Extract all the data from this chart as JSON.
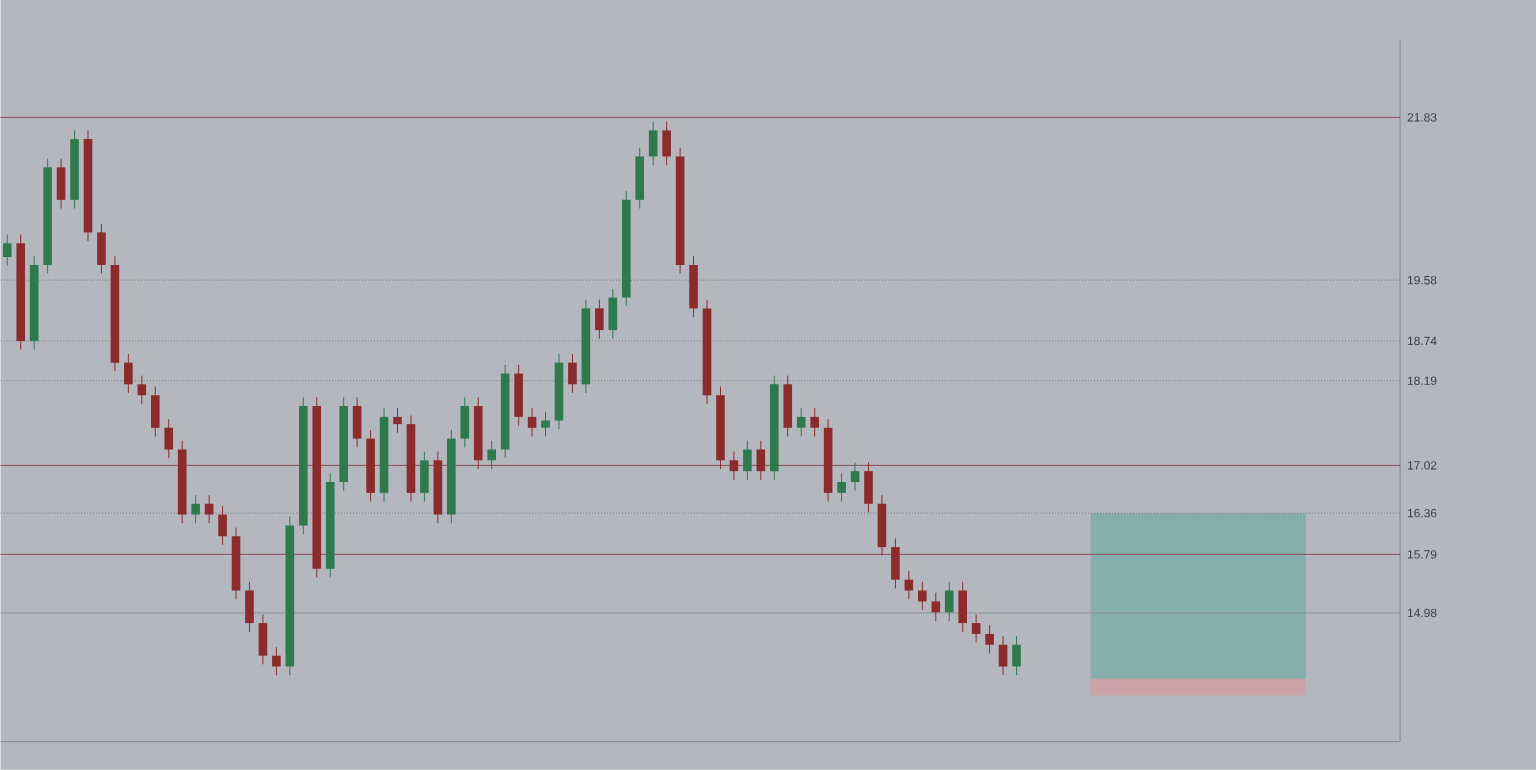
{
  "chart_data": {
    "type": "candlestick",
    "categories": [
      null,
      null,
      null,
      null,
      null,
      null,
      null,
      null,
      null,
      null,
      null,
      null,
      null,
      null,
      null,
      null,
      null,
      null,
      null,
      null,
      null,
      null,
      null,
      null,
      null,
      null,
      null,
      null,
      null,
      null,
      null,
      null,
      null,
      null,
      null,
      null,
      null,
      null,
      null,
      null,
      null,
      null,
      null,
      null,
      null,
      null,
      null,
      null,
      null,
      null,
      null,
      null,
      null,
      null,
      null,
      null,
      null,
      null,
      null,
      null,
      null,
      null,
      null,
      null,
      null,
      null,
      null,
      null,
      null,
      null,
      null,
      null,
      null,
      null,
      null,
      null,
      null,
      null,
      null,
      null,
      null,
      null,
      null,
      null,
      null,
      null,
      null,
      null,
      null,
      null,
      null,
      null,
      null,
      null,
      null,
      null,
      null,
      null,
      null,
      null,
      null,
      null,
      null,
      null
    ],
    "ohlc": [
      [
        19.9,
        20.21,
        19.78,
        20.09
      ],
      [
        20.09,
        20.21,
        18.62,
        18.74
      ],
      [
        18.74,
        19.91,
        18.62,
        19.79
      ],
      [
        19.79,
        21.26,
        19.67,
        21.14
      ],
      [
        21.14,
        21.26,
        20.57,
        20.69
      ],
      [
        20.69,
        21.65,
        20.57,
        21.53
      ],
      [
        21.53,
        21.65,
        20.12,
        20.24
      ],
      [
        20.24,
        20.36,
        19.67,
        19.79
      ],
      [
        19.79,
        19.91,
        18.32,
        18.44
      ],
      [
        18.44,
        18.56,
        18.02,
        18.14
      ],
      [
        18.14,
        18.26,
        17.87,
        17.99
      ],
      [
        17.99,
        18.11,
        17.42,
        17.54
      ],
      [
        17.54,
        17.66,
        17.12,
        17.24
      ],
      [
        17.24,
        17.36,
        16.22,
        16.34
      ],
      [
        16.34,
        16.61,
        16.22,
        16.49
      ],
      [
        16.49,
        16.61,
        16.22,
        16.34
      ],
      [
        16.34,
        16.46,
        15.92,
        16.04
      ],
      [
        16.04,
        16.16,
        15.17,
        15.29
      ],
      [
        15.29,
        15.41,
        14.72,
        14.84
      ],
      [
        14.84,
        14.96,
        14.27,
        14.39
      ],
      [
        14.39,
        14.51,
        14.12,
        14.24
      ],
      [
        14.24,
        16.31,
        14.12,
        16.19
      ],
      [
        16.19,
        17.96,
        16.07,
        17.84
      ],
      [
        17.84,
        17.96,
        15.47,
        15.59
      ],
      [
        15.59,
        16.91,
        15.47,
        16.79
      ],
      [
        16.79,
        17.96,
        16.67,
        17.84
      ],
      [
        17.84,
        17.96,
        17.27,
        17.39
      ],
      [
        17.39,
        17.51,
        16.52,
        16.64
      ],
      [
        16.64,
        17.81,
        16.52,
        17.69
      ],
      [
        17.69,
        17.81,
        17.47,
        17.59
      ],
      [
        17.59,
        17.71,
        16.52,
        16.64
      ],
      [
        16.64,
        17.21,
        16.52,
        17.09
      ],
      [
        17.09,
        17.21,
        16.22,
        16.34
      ],
      [
        16.34,
        17.51,
        16.22,
        17.39
      ],
      [
        17.39,
        17.96,
        17.27,
        17.84
      ],
      [
        17.84,
        17.96,
        16.97,
        17.09
      ],
      [
        17.09,
        17.36,
        16.97,
        17.24
      ],
      [
        17.24,
        18.41,
        17.12,
        18.29
      ],
      [
        18.29,
        18.41,
        17.57,
        17.69
      ],
      [
        17.69,
        17.81,
        17.42,
        17.54
      ],
      [
        17.54,
        17.76,
        17.42,
        17.64
      ],
      [
        17.64,
        18.56,
        17.52,
        18.44
      ],
      [
        18.44,
        18.56,
        18.02,
        18.14
      ],
      [
        18.14,
        19.31,
        18.02,
        19.19
      ],
      [
        19.19,
        19.31,
        18.77,
        18.89
      ],
      [
        18.89,
        19.46,
        18.77,
        19.34
      ],
      [
        19.34,
        20.81,
        19.22,
        20.69
      ],
      [
        20.69,
        21.41,
        20.57,
        21.29
      ],
      [
        21.29,
        21.77,
        21.17,
        21.65
      ],
      [
        21.65,
        21.77,
        21.17,
        21.29
      ],
      [
        21.29,
        21.41,
        19.67,
        19.79
      ],
      [
        19.79,
        19.91,
        19.07,
        19.19
      ],
      [
        19.19,
        19.31,
        17.87,
        17.99
      ],
      [
        17.99,
        18.11,
        16.97,
        17.09
      ],
      [
        17.09,
        17.21,
        16.82,
        16.94
      ],
      [
        16.94,
        17.36,
        16.82,
        17.24
      ],
      [
        17.24,
        17.36,
        16.82,
        16.94
      ],
      [
        16.94,
        18.26,
        16.82,
        18.14
      ],
      [
        18.14,
        18.26,
        17.42,
        17.54
      ],
      [
        17.54,
        17.81,
        17.42,
        17.69
      ],
      [
        17.69,
        17.81,
        17.42,
        17.54
      ],
      [
        17.54,
        17.66,
        16.52,
        16.64
      ],
      [
        16.64,
        16.91,
        16.52,
        16.79
      ],
      [
        16.79,
        17.06,
        16.67,
        16.94
      ],
      [
        16.94,
        17.06,
        16.37,
        16.49
      ],
      [
        16.49,
        16.61,
        15.77,
        15.89
      ],
      [
        15.89,
        16.01,
        15.32,
        15.44
      ],
      [
        15.44,
        15.56,
        15.17,
        15.29
      ],
      [
        15.29,
        15.41,
        15.02,
        15.14
      ],
      [
        15.14,
        15.26,
        14.87,
        14.99
      ],
      [
        14.99,
        15.41,
        14.87,
        15.29
      ],
      [
        15.29,
        15.41,
        14.72,
        14.84
      ],
      [
        14.84,
        14.96,
        14.57,
        14.69
      ],
      [
        14.69,
        14.81,
        14.42,
        14.54
      ],
      [
        14.54,
        14.66,
        14.12,
        14.24
      ],
      [
        14.24,
        14.66,
        14.12,
        14.54
      ],
      null,
      null,
      null,
      null,
      null,
      null,
      null,
      null,
      null,
      null,
      null,
      null,
      null,
      null,
      null,
      null,
      null,
      null,
      null,
      null,
      null,
      null,
      null,
      null,
      null,
      null,
      null,
      null
    ],
    "ylim": [
      13.2,
      22.9
    ],
    "yticks": [
      21.83,
      19.58,
      18.74,
      18.19,
      17.02,
      16.36,
      15.79,
      14.98
    ],
    "ref_lines": [
      {
        "axis": "y",
        "value": 21.83,
        "color": "#8e4a55",
        "line_style": "solid"
      },
      {
        "axis": "y",
        "value": 19.58,
        "color": "#70737a",
        "line_style": "dotted"
      },
      {
        "axis": "y",
        "value": 18.74,
        "color": "#70737a",
        "line_style": "dotted"
      },
      {
        "axis": "y",
        "value": 18.19,
        "color": "#70737a",
        "line_style": "dotted"
      },
      {
        "axis": "y",
        "value": 17.02,
        "color": "#8e4a55",
        "line_style": "solid"
      },
      {
        "axis": "y",
        "value": 16.36,
        "color": "#70737a",
        "line_style": "dotted"
      },
      {
        "axis": "y",
        "value": 15.79,
        "color": "#8e4a55",
        "line_style": "solid"
      },
      {
        "axis": "y",
        "value": 14.98,
        "color": "#8a8d94",
        "line_style": "solid"
      }
    ],
    "bands": [
      {
        "axis": "y",
        "from": 14.07,
        "to": 16.36,
        "color": "#86aeab"
      },
      {
        "axis": "y",
        "from": 13.84,
        "to": 14.07,
        "color": "#c9a3a8"
      }
    ]
  }
}
